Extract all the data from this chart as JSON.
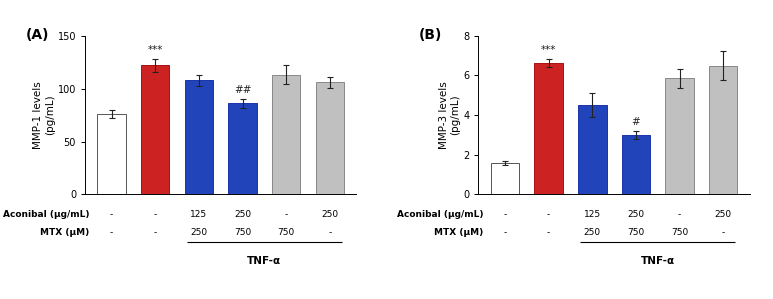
{
  "panel_A": {
    "title": "(A)",
    "ylabel": "MMP-1 levels\n(pg/mL)",
    "ylim": [
      0,
      150
    ],
    "yticks": [
      0,
      50,
      100,
      150
    ],
    "values": [
      76,
      122,
      108,
      86,
      113,
      106
    ],
    "errors": [
      4,
      6,
      5,
      4,
      9,
      5
    ],
    "colors": [
      "#ffffff",
      "#cc2222",
      "#2244bb",
      "#2244bb",
      "#c0c0c0",
      "#c0c0c0"
    ],
    "edge_colors": [
      "#555555",
      "#aa1111",
      "#1a33aa",
      "#1a33aa",
      "#888888",
      "#888888"
    ],
    "annotations": [
      "",
      "***",
      "",
      "##",
      "",
      ""
    ],
    "aconibal": [
      "-",
      "-",
      "125",
      "250",
      "-",
      "250"
    ],
    "mtx": [
      "-",
      "-",
      "250",
      "750",
      "750",
      "-"
    ],
    "tnf_alpha_span": [
      2,
      5
    ],
    "bar_width": 0.65
  },
  "panel_B": {
    "title": "(B)",
    "ylabel": "MMP-3 levels\n(pg/mL)",
    "ylim": [
      0,
      8
    ],
    "yticks": [
      0,
      2,
      4,
      6,
      8
    ],
    "values": [
      1.6,
      6.65,
      4.5,
      3.0,
      5.85,
      6.5
    ],
    "errors": [
      0.1,
      0.2,
      0.6,
      0.2,
      0.5,
      0.75
    ],
    "colors": [
      "#ffffff",
      "#cc2222",
      "#2244bb",
      "#2244bb",
      "#c0c0c0",
      "#c0c0c0"
    ],
    "edge_colors": [
      "#555555",
      "#aa1111",
      "#1a33aa",
      "#1a33aa",
      "#888888",
      "#888888"
    ],
    "annotations": [
      "",
      "***",
      "",
      "#",
      "",
      ""
    ],
    "aconibal": [
      "-",
      "-",
      "125",
      "250",
      "-",
      "250"
    ],
    "mtx": [
      "-",
      "-",
      "250",
      "750",
      "750",
      "-"
    ],
    "tnf_alpha_span": [
      2,
      5
    ],
    "bar_width": 0.65
  },
  "label_fontsize": 6.5,
  "annot_fontsize": 7.5,
  "title_fontsize": 10,
  "tick_fontsize": 7,
  "axis_label_fontsize": 7.5,
  "row_label_fontsize": 6.5,
  "tnf_fontsize": 7.5,
  "background_color": "#ffffff"
}
